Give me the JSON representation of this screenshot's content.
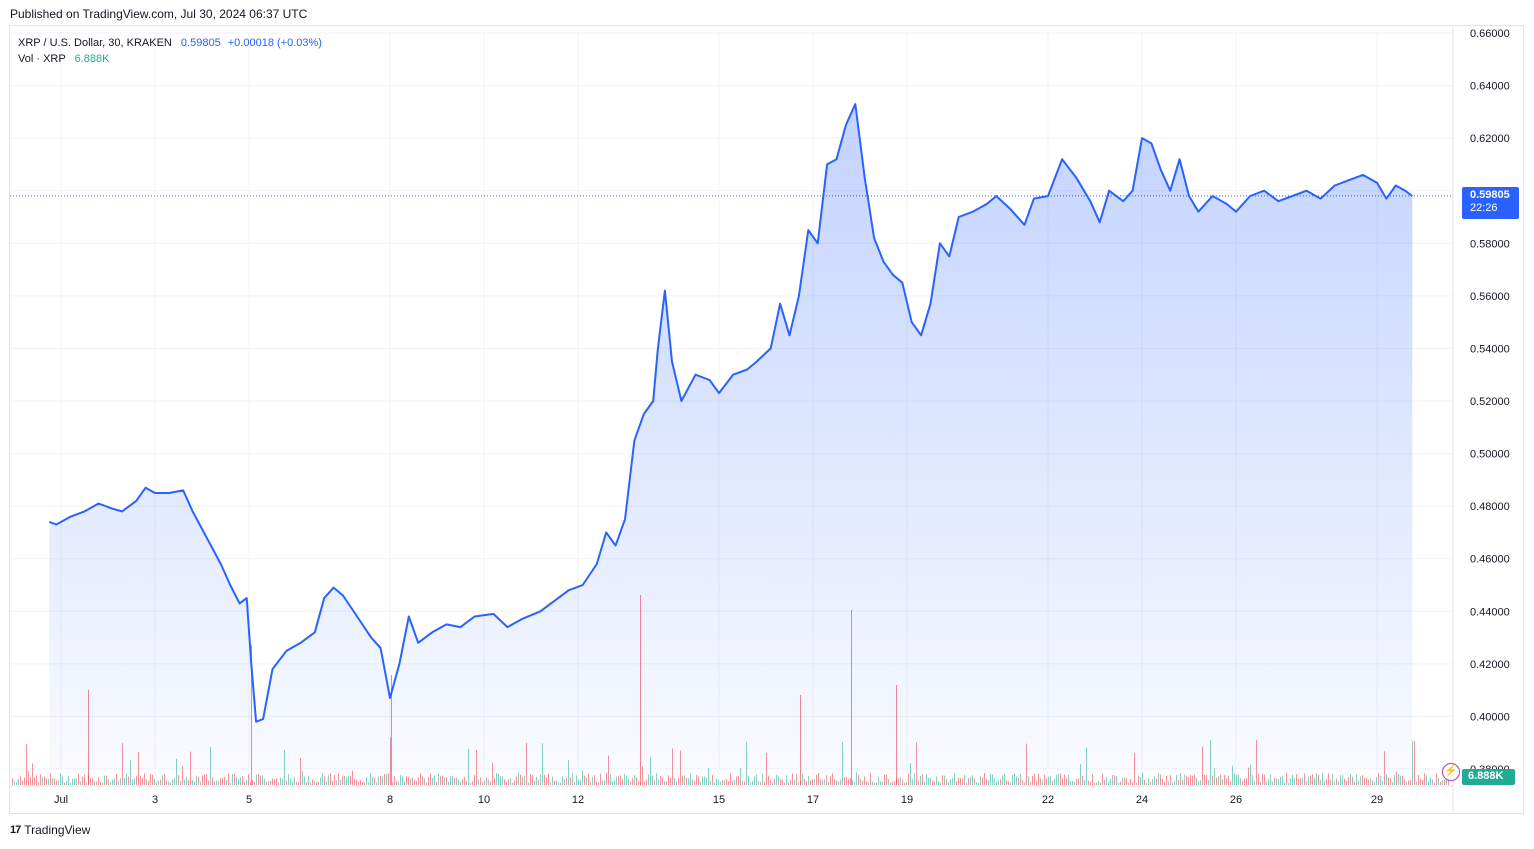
{
  "header": {
    "published": "Published on TradingView.com, Jul 30, 2024 06:37 UTC"
  },
  "legend": {
    "symbol": "XRP / U.S. Dollar, 30, KRAKEN",
    "price": "0.59805",
    "change": "+0.00018 (+0.03%)",
    "vol_label": "Vol · XRP",
    "vol_value": "6.888K"
  },
  "badges": {
    "price": "0.59805",
    "countdown": "22:26",
    "volume": "6.888K"
  },
  "footer": {
    "brand": "TradingView",
    "logo": "tradingview-logo-icon"
  },
  "colors": {
    "line": "#2962ff",
    "area": "#2962ff",
    "vol_up": "#22ab94",
    "vol_down": "#f23645",
    "grid": "#f0f3fa",
    "accent": "#b53aa8"
  },
  "icons": {
    "alert": "lightning-icon"
  },
  "chart_data": {
    "type": "area",
    "series": [
      {
        "name": "XRP / U.S. Dollar"
      }
    ],
    "ylim": [
      0.38,
      0.66
    ],
    "y_ticks": [
      "0.66000",
      "0.64000",
      "0.62000",
      "0.60000",
      "0.58000",
      "0.56000",
      "0.54000",
      "0.52000",
      "0.50000",
      "0.48000",
      "0.46000",
      "0.44000",
      "0.42000",
      "0.40000",
      "0.38000"
    ],
    "x_ticks": [
      {
        "label": "Jul",
        "day": 1
      },
      {
        "label": "3",
        "day": 3
      },
      {
        "label": "5",
        "day": 5
      },
      {
        "label": "8",
        "day": 8
      },
      {
        "label": "10",
        "day": 10
      },
      {
        "label": "12",
        "day": 12
      },
      {
        "label": "15",
        "day": 15
      },
      {
        "label": "17",
        "day": 17
      },
      {
        "label": "19",
        "day": 19
      },
      {
        "label": "22",
        "day": 22
      },
      {
        "label": "24",
        "day": 24
      },
      {
        "label": "26",
        "day": 26
      },
      {
        "label": "29",
        "day": 29
      }
    ],
    "points": [
      [
        0.75,
        0.474
      ],
      [
        0.9,
        0.473
      ],
      [
        1.2,
        0.476
      ],
      [
        1.5,
        0.478
      ],
      [
        1.8,
        0.481
      ],
      [
        2.1,
        0.479
      ],
      [
        2.3,
        0.478
      ],
      [
        2.6,
        0.482
      ],
      [
        2.8,
        0.487
      ],
      [
        3.0,
        0.485
      ],
      [
        3.3,
        0.485
      ],
      [
        3.6,
        0.486
      ],
      [
        3.8,
        0.478
      ],
      [
        4.1,
        0.468
      ],
      [
        4.4,
        0.458
      ],
      [
        4.6,
        0.45
      ],
      [
        4.8,
        0.443
      ],
      [
        4.95,
        0.445
      ],
      [
        5.05,
        0.42
      ],
      [
        5.15,
        0.398
      ],
      [
        5.3,
        0.399
      ],
      [
        5.5,
        0.418
      ],
      [
        5.8,
        0.425
      ],
      [
        6.1,
        0.428
      ],
      [
        6.4,
        0.432
      ],
      [
        6.6,
        0.445
      ],
      [
        6.8,
        0.449
      ],
      [
        7.0,
        0.446
      ],
      [
        7.3,
        0.438
      ],
      [
        7.6,
        0.43
      ],
      [
        7.8,
        0.426
      ],
      [
        8.0,
        0.407
      ],
      [
        8.2,
        0.42
      ],
      [
        8.4,
        0.438
      ],
      [
        8.6,
        0.428
      ],
      [
        8.9,
        0.432
      ],
      [
        9.2,
        0.435
      ],
      [
        9.5,
        0.434
      ],
      [
        9.8,
        0.438
      ],
      [
        10.2,
        0.439
      ],
      [
        10.5,
        0.434
      ],
      [
        10.8,
        0.437
      ],
      [
        11.2,
        0.44
      ],
      [
        11.5,
        0.444
      ],
      [
        11.8,
        0.448
      ],
      [
        12.1,
        0.45
      ],
      [
        12.4,
        0.458
      ],
      [
        12.6,
        0.47
      ],
      [
        12.8,
        0.465
      ],
      [
        13.0,
        0.475
      ],
      [
        13.2,
        0.505
      ],
      [
        13.4,
        0.515
      ],
      [
        13.6,
        0.52
      ],
      [
        13.7,
        0.54
      ],
      [
        13.85,
        0.562
      ],
      [
        14.0,
        0.535
      ],
      [
        14.2,
        0.52
      ],
      [
        14.5,
        0.53
      ],
      [
        14.8,
        0.528
      ],
      [
        15.0,
        0.523
      ],
      [
        15.3,
        0.53
      ],
      [
        15.6,
        0.532
      ],
      [
        15.8,
        0.535
      ],
      [
        16.1,
        0.54
      ],
      [
        16.3,
        0.557
      ],
      [
        16.5,
        0.545
      ],
      [
        16.7,
        0.56
      ],
      [
        16.9,
        0.585
      ],
      [
        17.1,
        0.58
      ],
      [
        17.3,
        0.61
      ],
      [
        17.5,
        0.612
      ],
      [
        17.7,
        0.625
      ],
      [
        17.9,
        0.633
      ],
      [
        18.1,
        0.605
      ],
      [
        18.3,
        0.582
      ],
      [
        18.5,
        0.573
      ],
      [
        18.7,
        0.568
      ],
      [
        18.9,
        0.565
      ],
      [
        19.1,
        0.55
      ],
      [
        19.3,
        0.545
      ],
      [
        19.5,
        0.557
      ],
      [
        19.7,
        0.58
      ],
      [
        19.9,
        0.575
      ],
      [
        20.1,
        0.59
      ],
      [
        20.4,
        0.592
      ],
      [
        20.7,
        0.595
      ],
      [
        20.9,
        0.598
      ],
      [
        21.2,
        0.593
      ],
      [
        21.5,
        0.587
      ],
      [
        21.7,
        0.597
      ],
      [
        22.0,
        0.598
      ],
      [
        22.3,
        0.612
      ],
      [
        22.6,
        0.605
      ],
      [
        22.9,
        0.596
      ],
      [
        23.1,
        0.588
      ],
      [
        23.3,
        0.6
      ],
      [
        23.6,
        0.596
      ],
      [
        23.8,
        0.6
      ],
      [
        24.0,
        0.62
      ],
      [
        24.2,
        0.618
      ],
      [
        24.4,
        0.608
      ],
      [
        24.6,
        0.6
      ],
      [
        24.8,
        0.612
      ],
      [
        25.0,
        0.598
      ],
      [
        25.2,
        0.592
      ],
      [
        25.5,
        0.598
      ],
      [
        25.8,
        0.595
      ],
      [
        26.0,
        0.592
      ],
      [
        26.3,
        0.598
      ],
      [
        26.6,
        0.6
      ],
      [
        26.9,
        0.596
      ],
      [
        27.2,
        0.598
      ],
      [
        27.5,
        0.6
      ],
      [
        27.8,
        0.597
      ],
      [
        28.1,
        0.602
      ],
      [
        28.4,
        0.604
      ],
      [
        28.7,
        0.606
      ],
      [
        29.0,
        0.603
      ],
      [
        29.2,
        0.597
      ],
      [
        29.4,
        0.602
      ],
      [
        29.6,
        0.6
      ],
      [
        29.75,
        0.598
      ]
    ]
  }
}
